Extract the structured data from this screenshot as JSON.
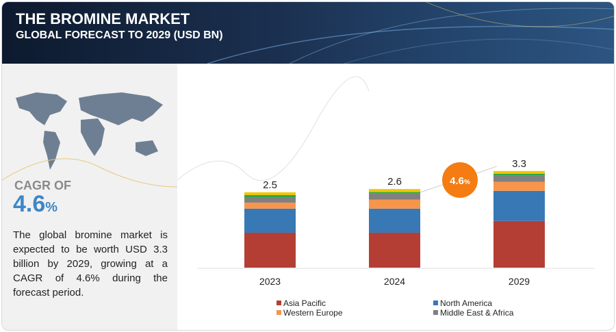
{
  "header": {
    "title": "THE BROMINE MARKET",
    "subtitle": "GLOBAL FORECAST TO 2029 (USD BN)"
  },
  "sidebar": {
    "cagr_label": "CAGR OF",
    "cagr_value": "4.6",
    "cagr_unit": "%",
    "description": "The global bromine market is expected to be worth USD 3.3 billion by 2029, growing at a CAGR of 4.6% during the forecast period.",
    "map_icon": "world-map-icon"
  },
  "chart_data": {
    "type": "bar",
    "stacked": true,
    "categories": [
      "2023",
      "2024",
      "2029"
    ],
    "totals": [
      "2.5",
      "2.6",
      "3.3"
    ],
    "series": [
      {
        "name": "Asia Pacific",
        "color": "#b53e34",
        "values": [
          1.16,
          1.16,
          1.55
        ]
      },
      {
        "name": "North America",
        "color": "#3878b4",
        "values": [
          0.8,
          0.8,
          1.0
        ]
      },
      {
        "name": "Western Europe",
        "color": "#f7954a",
        "values": [
          0.2,
          0.3,
          0.3
        ]
      },
      {
        "name": "Middle East & Africa",
        "color": "#808080",
        "values": [
          0.18,
          0.2,
          0.2
        ]
      },
      {
        "color": "#2aa84a",
        "values": [
          0.07,
          0.05,
          0.07
        ]
      },
      {
        "color": "#f2c500",
        "values": [
          0.09,
          0.1,
          0.09
        ]
      }
    ],
    "annotation": {
      "value": "4.6",
      "unit": "%",
      "color": "#f47c12"
    },
    "grid": false,
    "legend": "bottom"
  }
}
